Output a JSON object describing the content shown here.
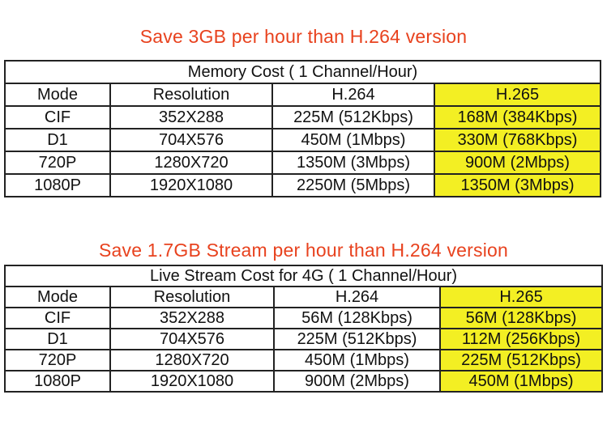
{
  "highlight_color": "#f3ef23",
  "headline_color": "#e8421e",
  "sections": [
    {
      "headline": "Save 3GB per hour than H.264 version",
      "table_title": "Memory Cost ( 1 Channel/Hour)",
      "columns": [
        "Mode",
        "Resolution",
        "H.264",
        "H.265"
      ],
      "rows": [
        [
          "CIF",
          "352X288",
          "225M (512Kbps)",
          "168M (384Kbps)"
        ],
        [
          "D1",
          "704X576",
          "450M (1Mbps)",
          "330M (768Kbps)"
        ],
        [
          "720P",
          "1280X720",
          "1350M (3Mbps)",
          "900M (2Mbps)"
        ],
        [
          "1080P",
          "1920X1080",
          "2250M (5Mbps)",
          "1350M (3Mbps)"
        ]
      ]
    },
    {
      "headline": "Save 1.7GB Stream per hour than H.264 version",
      "table_title": "Live Stream Cost for 4G ( 1 Channel/Hour)",
      "columns": [
        "Mode",
        "Resolution",
        "H.264",
        "H.265"
      ],
      "rows": [
        [
          "CIF",
          "352X288",
          "56M (128Kbps)",
          "56M (128Kbps)"
        ],
        [
          "D1",
          "704X576",
          "225M (512Kbps)",
          "112M (256Kbps)"
        ],
        [
          "720P",
          "1280X720",
          "450M (1Mbps)",
          "225M (512Kbps)"
        ],
        [
          "1080P",
          "1920X1080",
          "900M (2Mbps)",
          "450M (1Mbps)"
        ]
      ]
    }
  ]
}
